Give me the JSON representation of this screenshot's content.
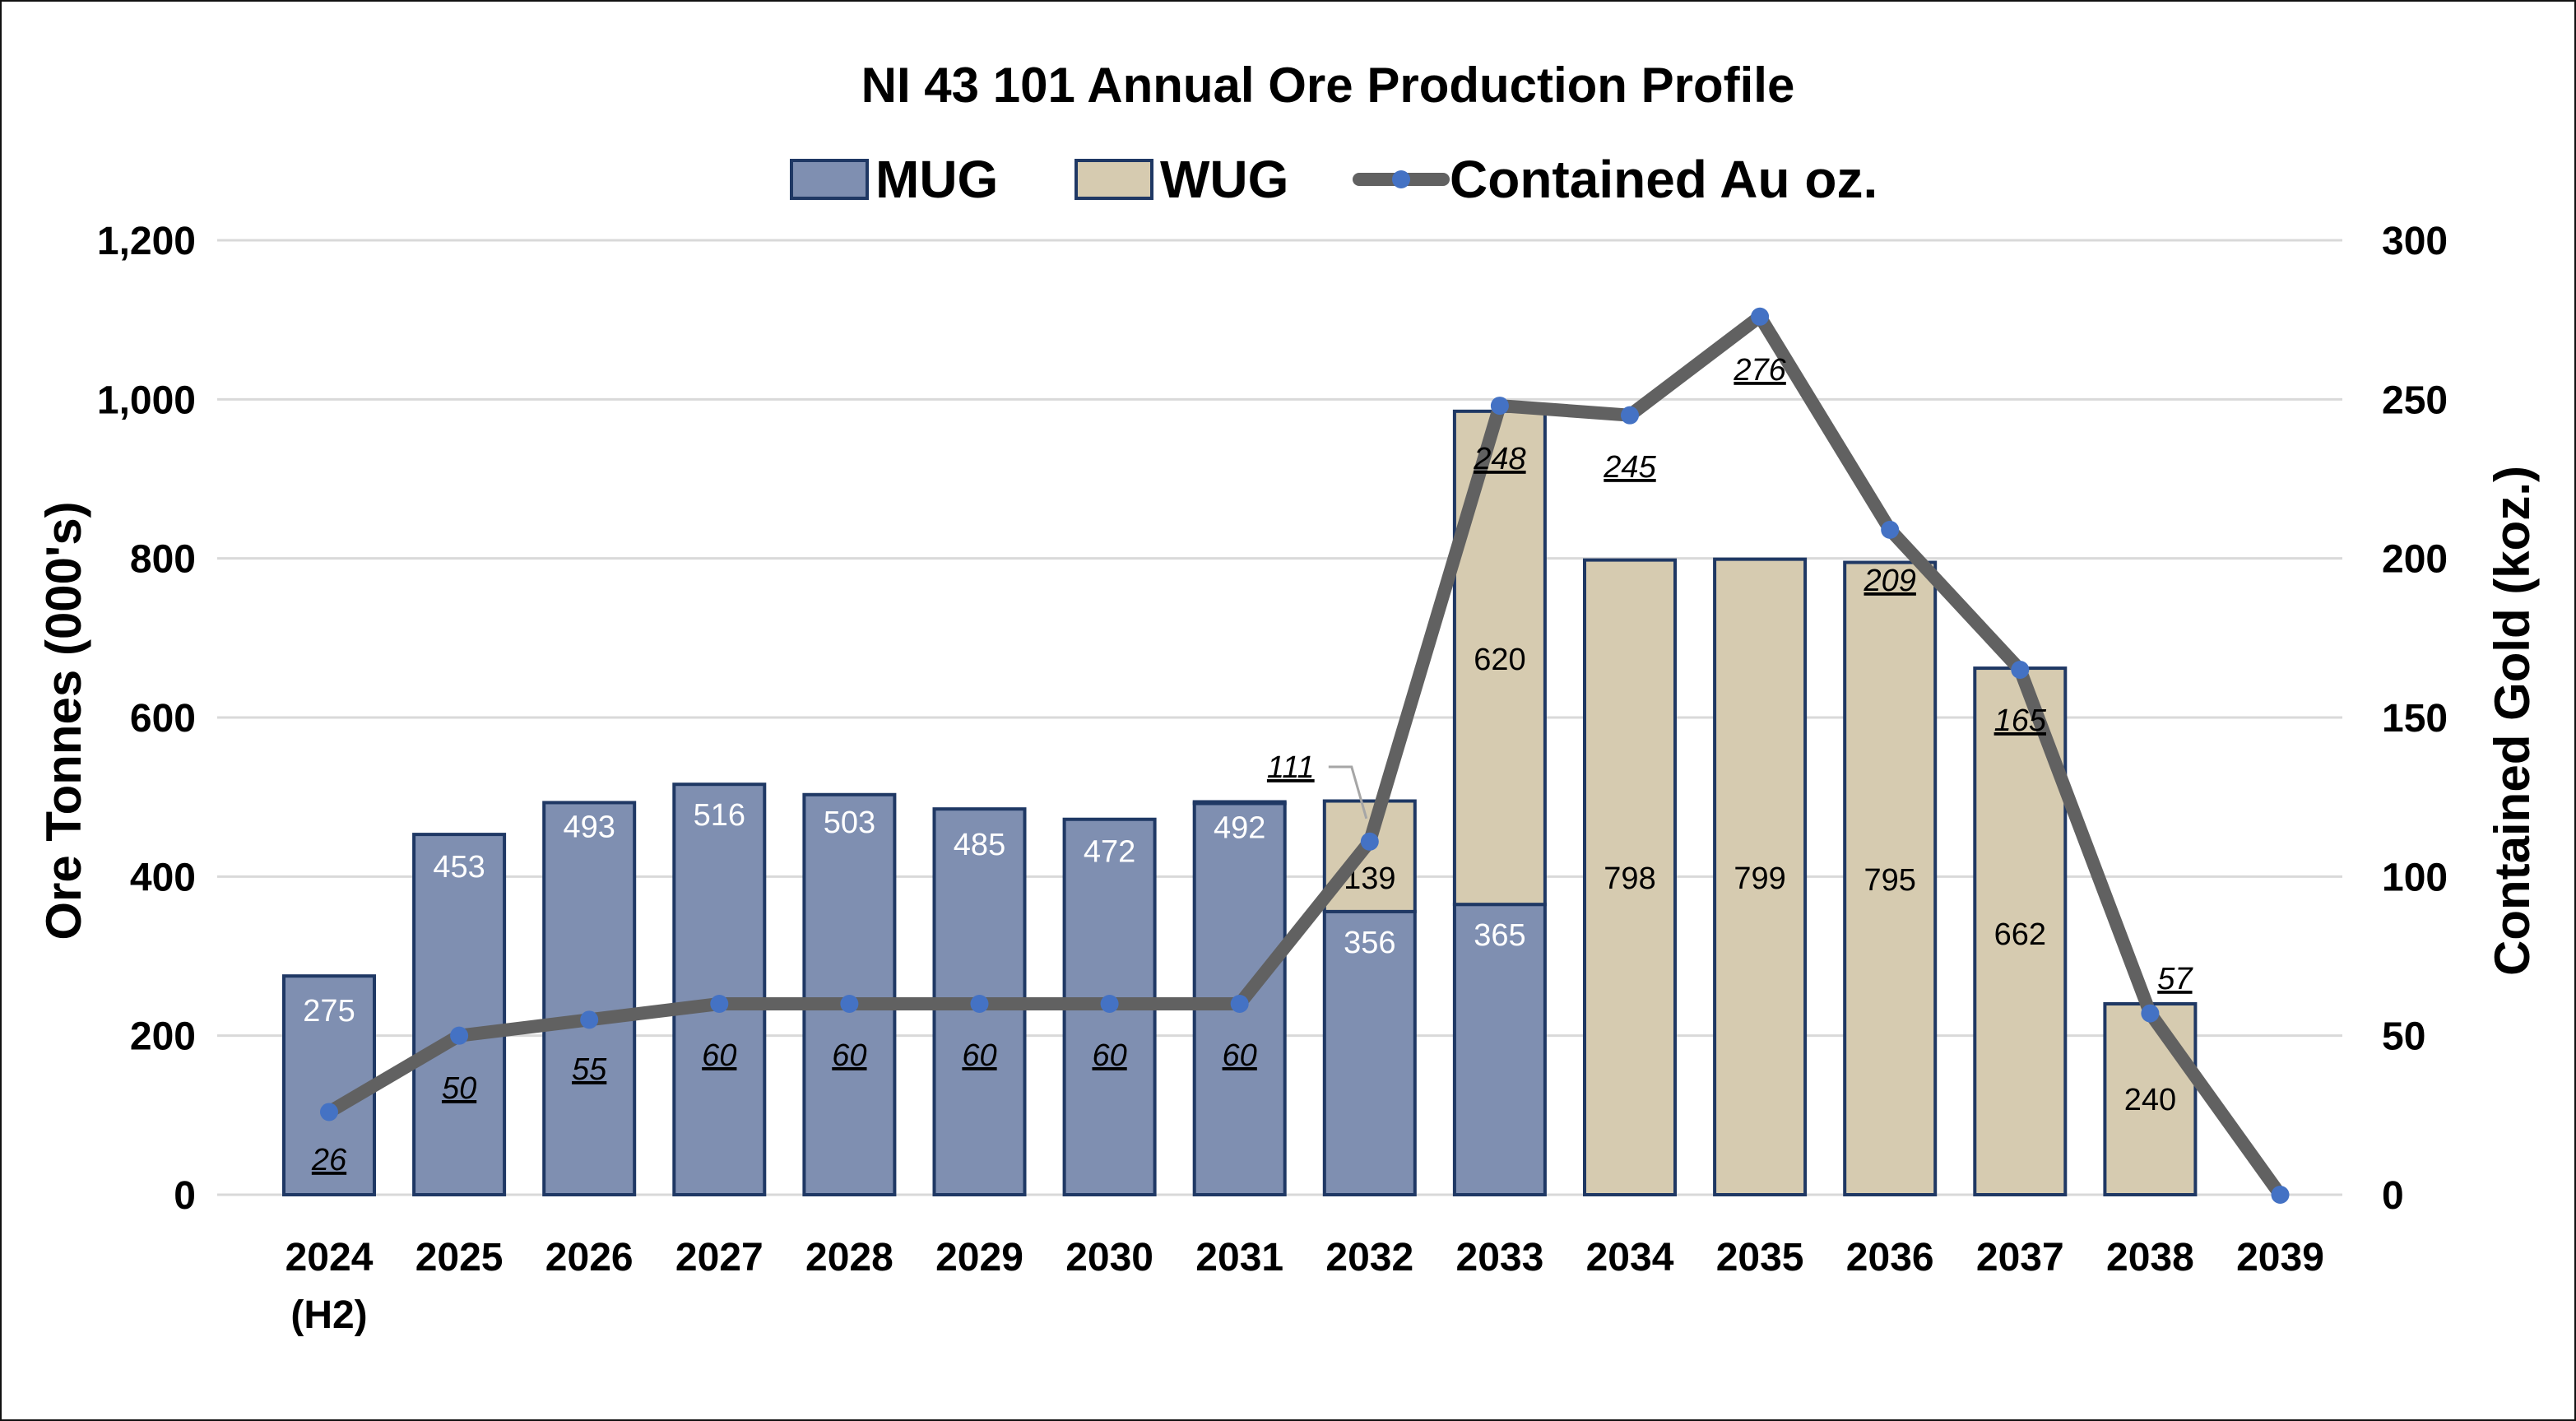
{
  "chart_data": {
    "type": "bar",
    "stacked": true,
    "title": "NI 43 101  Annual Ore Production Profile",
    "categories": [
      "2024",
      "2025",
      "2026",
      "2027",
      "2028",
      "2029",
      "2030",
      "2031",
      "2032",
      "2033",
      "2034",
      "2035",
      "2036",
      "2037",
      "2038",
      "2039"
    ],
    "category_sublabels": [
      "(H2)",
      "",
      "",
      "",
      "",
      "",
      "",
      "",
      "",
      "",
      "",
      "",
      "",
      "",
      "",
      ""
    ],
    "ylabel": "Ore Tonnes (000's)",
    "ylim": [
      0,
      1200
    ],
    "yticks": [
      0,
      200,
      400,
      600,
      800,
      1000,
      1200
    ],
    "ytick_labels": [
      "0",
      "200",
      "400",
      "600",
      "800",
      "1,000",
      "1,200"
    ],
    "y2label": "Contained Gold (koz.)",
    "y2lim": [
      0,
      300
    ],
    "y2ticks": [
      0,
      50,
      100,
      150,
      200,
      250,
      300
    ],
    "y2tick_labels": [
      "0",
      "50",
      "100",
      "150",
      "200",
      "250",
      "300"
    ],
    "grid": true,
    "legend_position": "top",
    "series": [
      {
        "name": "MUG",
        "kind": "bar",
        "axis": "left",
        "color": "#7f8fb1",
        "edge": "#1f3864",
        "values": [
          275,
          453,
          493,
          516,
          503,
          485,
          472,
          492,
          356,
          365,
          0,
          0,
          0,
          0,
          0,
          0
        ],
        "labels": [
          "275",
          "453",
          "493",
          "516",
          "503",
          "485",
          "472",
          "492",
          "356",
          "365",
          "",
          "",
          "",
          "",
          "",
          ""
        ]
      },
      {
        "name": "WUG",
        "kind": "bar",
        "axis": "left",
        "color": "#d6cbb0",
        "edge": "#1f3864",
        "values": [
          0,
          0,
          0,
          0,
          0,
          0,
          0,
          2,
          139,
          620,
          798,
          799,
          795,
          662,
          240,
          0
        ],
        "labels": [
          "",
          "",
          "",
          "",
          "",
          "",
          "",
          "",
          "139",
          "620",
          "798",
          "799",
          "795",
          "662",
          "240",
          ""
        ]
      },
      {
        "name": "Contained Au oz.",
        "kind": "line",
        "axis": "right",
        "color": "#616161",
        "marker_color": "#4472c4",
        "values": [
          26,
          50,
          55,
          60,
          60,
          60,
          60,
          60,
          111,
          248,
          245,
          276,
          209,
          165,
          57,
          0
        ],
        "labels": [
          "26",
          "50",
          "55",
          "60",
          "60",
          "60",
          "60",
          "60",
          "111",
          "248",
          "245",
          "276",
          "209",
          "165",
          "57",
          ""
        ]
      }
    ]
  }
}
